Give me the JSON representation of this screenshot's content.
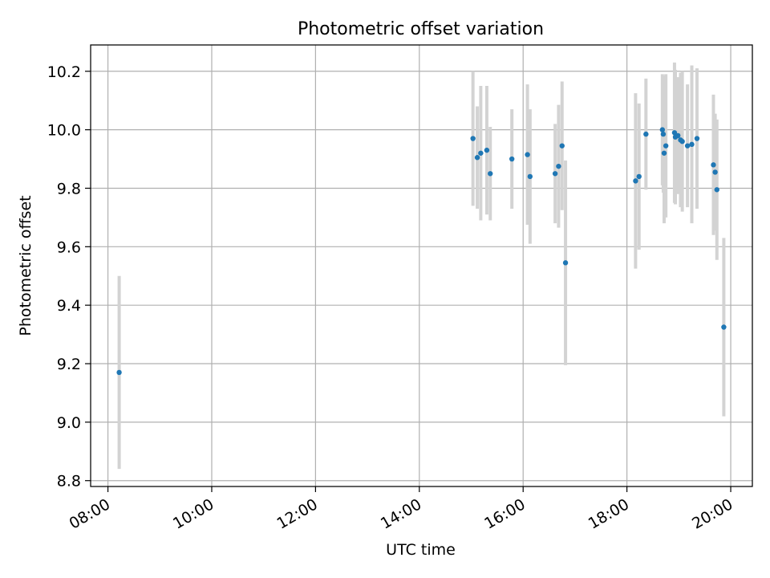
{
  "chart_data": {
    "type": "scatter",
    "title": "Photometric offset variation",
    "xlabel": "UTC time",
    "ylabel": "Photometric offset",
    "x_ticks": [
      "08:00",
      "10:00",
      "12:00",
      "14:00",
      "16:00",
      "18:00",
      "20:00"
    ],
    "y_ticks": [
      "8.8",
      "9.0",
      "9.2",
      "9.4",
      "9.6",
      "9.8",
      "10.0",
      "10.2"
    ],
    "xlim": [
      "07:40",
      "20:25"
    ],
    "ylim": [
      8.78,
      10.29
    ],
    "grid": true,
    "colors": {
      "point": "#1f77b4",
      "errorbar": "#d3d3d3",
      "grid": "#b0b0b0"
    },
    "series": [
      {
        "points": [
          {
            "x": "08:13",
            "y": 9.17,
            "err": 0.33
          },
          {
            "x": "15:02",
            "y": 9.97,
            "err": 0.23
          },
          {
            "x": "15:07",
            "y": 9.905,
            "err": 0.175
          },
          {
            "x": "15:11",
            "y": 9.92,
            "err": 0.23
          },
          {
            "x": "15:18",
            "y": 9.93,
            "err": 0.22
          },
          {
            "x": "15:22",
            "y": 9.85,
            "err": 0.16
          },
          {
            "x": "15:47",
            "y": 9.9,
            "err": 0.17
          },
          {
            "x": "16:05",
            "y": 9.915,
            "err": 0.24
          },
          {
            "x": "16:08",
            "y": 9.84,
            "err": 0.23
          },
          {
            "x": "16:37",
            "y": 9.85,
            "err": 0.17
          },
          {
            "x": "16:41",
            "y": 9.875,
            "err": 0.21
          },
          {
            "x": "16:45",
            "y": 9.945,
            "err": 0.22
          },
          {
            "x": "16:49",
            "y": 9.545,
            "err": 0.35
          },
          {
            "x": "18:10",
            "y": 9.825,
            "err": 0.3
          },
          {
            "x": "18:14",
            "y": 9.84,
            "err": 0.25
          },
          {
            "x": "18:22",
            "y": 9.985,
            "err": 0.19
          },
          {
            "x": "18:41",
            "y": 10.0,
            "err": 0.19
          },
          {
            "x": "18:42",
            "y": 9.985,
            "err": 0.2
          },
          {
            "x": "18:43",
            "y": 9.92,
            "err": 0.24
          },
          {
            "x": "18:45",
            "y": 9.945,
            "err": 0.245
          },
          {
            "x": "18:55",
            "y": 9.99,
            "err": 0.24
          },
          {
            "x": "18:56",
            "y": 9.975,
            "err": 0.23
          },
          {
            "x": "18:59",
            "y": 9.98,
            "err": 0.2
          },
          {
            "x": "19:02",
            "y": 9.965,
            "err": 0.23
          },
          {
            "x": "19:04",
            "y": 9.96,
            "err": 0.24
          },
          {
            "x": "19:10",
            "y": 9.945,
            "err": 0.21
          },
          {
            "x": "19:15",
            "y": 9.95,
            "err": 0.27
          },
          {
            "x": "19:21",
            "y": 9.97,
            "err": 0.24
          },
          {
            "x": "19:40",
            "y": 9.88,
            "err": 0.24
          },
          {
            "x": "19:42",
            "y": 9.855,
            "err": 0.2
          },
          {
            "x": "19:44",
            "y": 9.795,
            "err": 0.24
          },
          {
            "x": "19:52",
            "y": 9.325,
            "err": 0.305
          }
        ]
      }
    ]
  }
}
